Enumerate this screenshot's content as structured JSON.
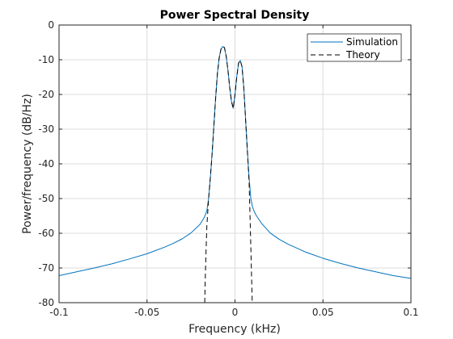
{
  "chart_data": {
    "type": "line",
    "title": "Power Spectral Density",
    "xlabel": "Frequency (kHz)",
    "ylabel": "Power/frequency (dB/Hz)",
    "xlim": [
      -0.1,
      0.1
    ],
    "ylim": [
      -80,
      0
    ],
    "xticks": [
      -0.1,
      -0.05,
      0,
      0.05,
      0.1
    ],
    "xtick_labels": [
      "-0.1",
      "-0.05",
      "0",
      "0.05",
      "0.1"
    ],
    "yticks": [
      -80,
      -70,
      -60,
      -50,
      -40,
      -30,
      -20,
      -10,
      0
    ],
    "ytick_labels": [
      "-80",
      "-70",
      "-60",
      "-50",
      "-40",
      "-30",
      "-20",
      "-10",
      "0"
    ],
    "grid": true,
    "legend_position": "top-right",
    "series": [
      {
        "name": "Simulation",
        "color": "#0072bd",
        "style": "solid",
        "x": [
          -0.1,
          -0.09,
          -0.08,
          -0.07,
          -0.06,
          -0.05,
          -0.04,
          -0.035,
          -0.03,
          -0.025,
          -0.02,
          -0.0175,
          -0.016,
          -0.015,
          -0.014,
          -0.013,
          -0.012,
          -0.011,
          -0.01,
          -0.009,
          -0.008,
          -0.007,
          -0.006,
          -0.005,
          -0.004,
          -0.003,
          -0.002,
          -0.001,
          0,
          0.001,
          0.002,
          0.003,
          0.004,
          0.005,
          0.006,
          0.007,
          0.008,
          0.009,
          0.01,
          0.011,
          0.012,
          0.015,
          0.02,
          0.025,
          0.03,
          0.04,
          0.05,
          0.06,
          0.07,
          0.08,
          0.09,
          0.1
        ],
        "y": [
          -72.2,
          -71.1,
          -70,
          -68.8,
          -67.4,
          -65.9,
          -64,
          -62.9,
          -61.6,
          -59.9,
          -57.5,
          -55.5,
          -53.5,
          -50,
          -44,
          -37,
          -29,
          -21,
          -14,
          -9.5,
          -7,
          -6.2,
          -6.5,
          -9,
          -13,
          -18,
          -22,
          -24,
          -20,
          -15,
          -11,
          -10.2,
          -12,
          -18,
          -27,
          -36,
          -44,
          -50,
          -52.5,
          -53.8,
          -54.8,
          -57.1,
          -59.9,
          -61.7,
          -63.1,
          -65.4,
          -67.2,
          -68.7,
          -70,
          -71.1,
          -72.2,
          -73
        ]
      },
      {
        "name": "Theory",
        "color": "#000000",
        "style": "dashed",
        "x": [
          -0.0172,
          -0.017,
          -0.0165,
          -0.016,
          -0.015,
          -0.014,
          -0.013,
          -0.012,
          -0.011,
          -0.01,
          -0.009,
          -0.008,
          -0.007,
          -0.006,
          -0.005,
          -0.004,
          -0.003,
          -0.002,
          -0.001,
          0,
          0.001,
          0.002,
          0.003,
          0.004,
          0.005,
          0.006,
          0.007,
          0.008,
          0.0085,
          0.009,
          0.0095,
          0.0098
        ],
        "y": [
          -80,
          -75,
          -66,
          -58,
          -50,
          -44,
          -37,
          -29,
          -21,
          -14,
          -9.5,
          -7,
          -6.2,
          -6.5,
          -9,
          -13,
          -18,
          -22,
          -24,
          -20,
          -15,
          -11,
          -10.2,
          -12,
          -18,
          -27,
          -36,
          -45,
          -54,
          -64,
          -74,
          -80
        ]
      }
    ]
  }
}
